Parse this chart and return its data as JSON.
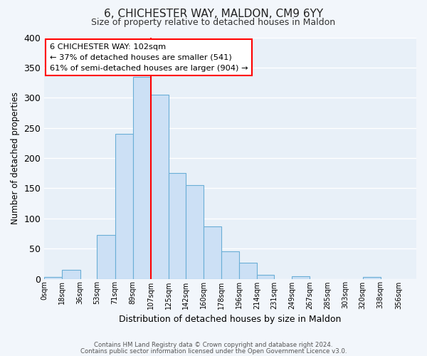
{
  "title": "6, CHICHESTER WAY, MALDON, CM9 6YY",
  "subtitle": "Size of property relative to detached houses in Maldon",
  "xlabel": "Distribution of detached houses by size in Maldon",
  "ylabel": "Number of detached properties",
  "bar_color": "#cce0f5",
  "bar_edge_color": "#6aaed6",
  "fig_bg_color": "#f2f6fb",
  "ax_bg_color": "#e8f0f8",
  "grid_color": "#ffffff",
  "bin_labels": [
    "0sqm",
    "18sqm",
    "36sqm",
    "53sqm",
    "71sqm",
    "89sqm",
    "107sqm",
    "125sqm",
    "142sqm",
    "160sqm",
    "178sqm",
    "196sqm",
    "214sqm",
    "231sqm",
    "249sqm",
    "267sqm",
    "285sqm",
    "303sqm",
    "320sqm",
    "338sqm",
    "356sqm"
  ],
  "bar_heights": [
    3,
    15,
    0,
    72,
    240,
    335,
    305,
    175,
    155,
    87,
    45,
    27,
    7,
    0,
    4,
    0,
    0,
    0,
    3,
    0,
    0
  ],
  "property_line_x": 107,
  "property_line_label": "6 CHICHESTER WAY: 102sqm",
  "annotation_line1": "← 37% of detached houses are smaller (541)",
  "annotation_line2": "61% of semi-detached houses are larger (904) →",
  "ylim": [
    0,
    400
  ],
  "yticks": [
    0,
    50,
    100,
    150,
    200,
    250,
    300,
    350,
    400
  ],
  "footer1": "Contains HM Land Registry data © Crown copyright and database right 2024.",
  "footer2": "Contains public sector information licensed under the Open Government Licence v3.0."
}
